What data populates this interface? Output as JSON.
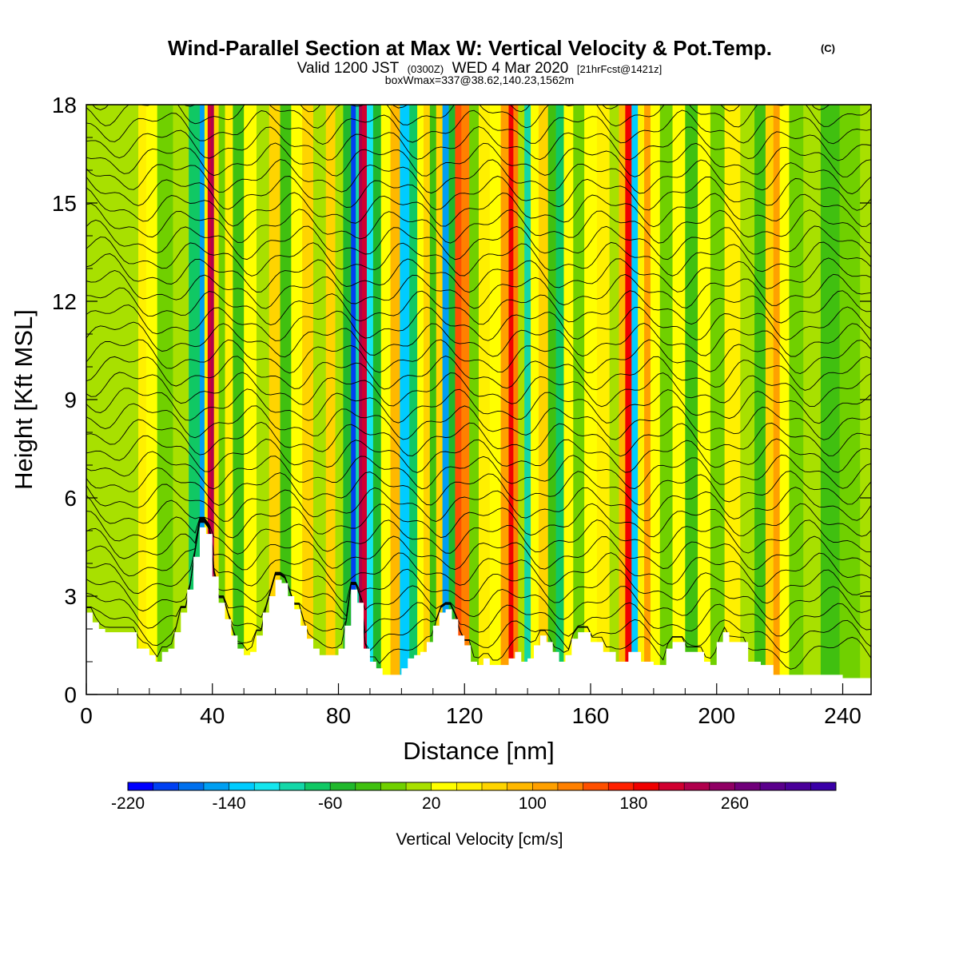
{
  "header": {
    "title": "Wind-Parallel Section at Max W: Vertical Velocity & Pot.Temp.",
    "title_mark": "(C)",
    "valid_a": "Valid 1200 JST",
    "valid_b": "(0300Z)",
    "valid_c": "WED 4 Mar 2020",
    "valid_d": "[21hrFcst@1421z]",
    "boxline": "boxWmax=337@38.62,140.23,1562m"
  },
  "chart_data": {
    "type": "heatmap",
    "xlabel": "Distance [nm]",
    "ylabel": "Height [Kft MSL]",
    "xlim": [
      0,
      249
    ],
    "ylim": [
      0,
      18
    ],
    "x_ticks": [
      0,
      40,
      80,
      120,
      160,
      200,
      240
    ],
    "x_tick_labels": [
      "0",
      "40",
      "80",
      "120",
      "160",
      "200",
      "240"
    ],
    "y_ticks": [
      0,
      3,
      6,
      9,
      12,
      15,
      18
    ],
    "y_tick_labels": [
      "0",
      "3",
      "6",
      "9",
      "12",
      "15",
      "18"
    ],
    "colorbar": {
      "title": "Vertical Velocity [cm/s]",
      "range": [
        -220,
        340
      ],
      "step": 20,
      "labeled_values": [
        -220,
        -140,
        -60,
        20,
        100,
        180,
        260
      ],
      "labels": [
        "-220",
        "-140",
        "-60",
        "20",
        "100",
        "180",
        "260"
      ],
      "colors": [
        "#0000ff",
        "#0040f2",
        "#0070ee",
        "#009ff2",
        "#00ccff",
        "#14e6ee",
        "#14d7a8",
        "#10c864",
        "#20b82c",
        "#40c010",
        "#70d000",
        "#a8e000",
        "#ffff00",
        "#fff000",
        "#ffd400",
        "#ffb800",
        "#ffa000",
        "#ff8000",
        "#ff5000",
        "#ff2000",
        "#f00000",
        "#d00030",
        "#b0004c",
        "#900064",
        "#70007a",
        "#5a008c",
        "#4a009a",
        "#3a00a8"
      ]
    },
    "terrain": {
      "x": [
        0,
        2,
        2,
        4,
        4,
        6,
        6,
        8,
        8,
        12,
        12,
        16,
        16,
        20,
        20,
        22,
        22,
        24,
        24,
        26,
        26,
        28,
        28,
        30,
        30,
        32,
        32,
        34,
        34,
        36,
        36,
        38,
        38,
        40,
        40,
        42,
        42,
        44,
        44,
        46,
        46,
        48,
        48,
        50,
        50,
        52,
        52,
        54,
        54,
        56,
        56,
        58,
        58,
        60,
        60,
        62,
        62,
        64,
        64,
        66,
        66,
        68,
        68,
        70,
        70,
        72,
        72,
        74,
        74,
        76,
        76,
        78,
        78,
        80,
        80,
        82,
        82,
        84,
        84,
        86,
        86,
        88,
        88,
        90,
        90,
        92,
        92,
        94,
        94,
        98,
        98,
        100,
        100,
        102,
        102,
        104,
        104,
        106,
        106,
        108,
        108,
        110,
        110,
        112,
        112,
        114,
        114,
        116,
        116,
        118,
        118,
        120,
        120,
        122,
        122,
        124,
        124,
        126,
        126,
        128,
        128,
        130,
        130,
        134,
        134,
        136,
        136,
        138,
        138,
        140,
        140,
        142,
        142,
        144,
        144,
        146,
        146,
        148,
        148,
        150,
        150,
        152,
        152,
        154,
        154,
        156,
        156,
        160,
        160,
        164,
        164,
        168,
        168,
        170,
        170,
        172,
        172,
        176,
        176,
        180,
        180,
        184,
        184,
        186,
        186,
        190,
        190,
        194,
        194,
        196,
        196,
        198,
        198,
        200,
        200,
        202,
        202,
        204,
        204,
        210,
        210,
        214,
        214,
        218,
        218,
        240,
        240,
        249
      ],
      "y": [
        2.5,
        2.5,
        2.2,
        2.2,
        2.0,
        2.0,
        1.9,
        1.9,
        1.9,
        1.9,
        1.9,
        1.9,
        1.4,
        1.4,
        1.2,
        1.2,
        1.0,
        1.0,
        1.3,
        1.3,
        1.4,
        1.4,
        1.9,
        1.9,
        2.5,
        2.5,
        3.2,
        3.2,
        4.2,
        4.2,
        5.1,
        5.1,
        4.9,
        4.9,
        3.6,
        3.6,
        2.8,
        2.8,
        2.3,
        2.3,
        1.8,
        1.8,
        1.4,
        1.4,
        1.2,
        1.2,
        1.3,
        1.3,
        1.8,
        1.8,
        2.5,
        2.5,
        3.0,
        3.0,
        3.5,
        3.5,
        3.4,
        3.4,
        3.0,
        3.0,
        2.6,
        2.6,
        2.1,
        2.1,
        1.7,
        1.7,
        1.4,
        1.4,
        1.2,
        1.2,
        1.2,
        1.2,
        1.2,
        1.2,
        1.4,
        1.4,
        2.1,
        2.1,
        3.2,
        3.2,
        2.8,
        2.8,
        1.4,
        1.4,
        1.0,
        1.0,
        0.8,
        0.8,
        0.6,
        0.6,
        0.6,
        0.6,
        0.8,
        0.8,
        1.1,
        1.1,
        1.2,
        1.2,
        1.3,
        1.3,
        1.6,
        1.6,
        2.1,
        2.1,
        2.5,
        2.5,
        2.6,
        2.6,
        2.3,
        2.3,
        1.8,
        1.8,
        1.5,
        1.5,
        1.0,
        1.0,
        0.9,
        0.9,
        1.1,
        1.1,
        0.9,
        0.9,
        0.9,
        0.9,
        1.1,
        1.1,
        1.3,
        1.3,
        1.0,
        1.0,
        1.1,
        1.1,
        1.5,
        1.5,
        1.8,
        1.8,
        1.6,
        1.6,
        1.3,
        1.3,
        1.0,
        1.0,
        1.2,
        1.2,
        1.7,
        1.7,
        1.9,
        1.9,
        1.6,
        1.6,
        1.3,
        1.3,
        1.0,
        1.0,
        1.0,
        1.0,
        1.3,
        1.3,
        1.0,
        1.0,
        0.9,
        0.9,
        1.4,
        1.4,
        1.6,
        1.6,
        1.3,
        1.3,
        1.3,
        1.3,
        1.0,
        1.0,
        0.9,
        0.9,
        1.6,
        1.6,
        1.9,
        1.9,
        1.6,
        1.6,
        1.0,
        1.0,
        0.9,
        0.9,
        0.6,
        0.6,
        0.5,
        0.5,
        0.3,
        0.3,
        0.3,
        0.3,
        0.3,
        0.3
      ]
    },
    "columns": [
      {
        "x": 0,
        "w": 0
      },
      {
        "x": 8,
        "w": 0
      },
      {
        "x": 15,
        "w": 10
      },
      {
        "x": 18,
        "w": 45
      },
      {
        "x": 20,
        "w": 25
      },
      {
        "x": 25,
        "w": -20
      },
      {
        "x": 30,
        "w": 0
      },
      {
        "x": 35,
        "w": -80
      },
      {
        "x": 37,
        "w": -160
      },
      {
        "x": 38,
        "w": 40
      },
      {
        "x": 39,
        "w": 200
      },
      {
        "x": 40,
        "w": 220
      },
      {
        "x": 41,
        "w": 60
      },
      {
        "x": 43,
        "w": -20
      },
      {
        "x": 45,
        "w": 50
      },
      {
        "x": 48,
        "w": -40
      },
      {
        "x": 52,
        "w": 30
      },
      {
        "x": 56,
        "w": 10
      },
      {
        "x": 60,
        "w": 60
      },
      {
        "x": 63,
        "w": -30
      },
      {
        "x": 67,
        "w": 20
      },
      {
        "x": 70,
        "w": 70
      },
      {
        "x": 74,
        "w": 10
      },
      {
        "x": 78,
        "w": 60
      },
      {
        "x": 80,
        "w": 10
      },
      {
        "x": 83,
        "w": -60
      },
      {
        "x": 85,
        "w": -190
      },
      {
        "x": 86,
        "w": -100
      },
      {
        "x": 87,
        "w": 230
      },
      {
        "x": 88,
        "w": 200
      },
      {
        "x": 90,
        "w": -120
      },
      {
        "x": 92,
        "w": -60
      },
      {
        "x": 95,
        "w": 30
      },
      {
        "x": 98,
        "w": 80
      },
      {
        "x": 101,
        "w": -130
      },
      {
        "x": 104,
        "w": -80
      },
      {
        "x": 106,
        "w": 20
      },
      {
        "x": 108,
        "w": 70
      },
      {
        "x": 110,
        "w": -30
      },
      {
        "x": 112,
        "w": 60
      },
      {
        "x": 114,
        "w": -160
      },
      {
        "x": 116,
        "w": -60
      },
      {
        "x": 118,
        "w": 150
      },
      {
        "x": 120,
        "w": 120
      },
      {
        "x": 123,
        "w": -20
      },
      {
        "x": 126,
        "w": 40
      },
      {
        "x": 130,
        "w": 20
      },
      {
        "x": 133,
        "w": 100
      },
      {
        "x": 135,
        "w": 190
      },
      {
        "x": 136,
        "w": 130
      },
      {
        "x": 138,
        "w": 0
      },
      {
        "x": 140,
        "w": -100
      },
      {
        "x": 142,
        "w": 20
      },
      {
        "x": 145,
        "w": 60
      },
      {
        "x": 148,
        "w": -40
      },
      {
        "x": 150,
        "w": -70
      },
      {
        "x": 153,
        "w": 30
      },
      {
        "x": 156,
        "w": -20
      },
      {
        "x": 160,
        "w": 20
      },
      {
        "x": 164,
        "w": 50
      },
      {
        "x": 168,
        "w": 10
      },
      {
        "x": 170,
        "w": 80
      },
      {
        "x": 172,
        "w": 190
      },
      {
        "x": 174,
        "w": -130
      },
      {
        "x": 176,
        "w": 40
      },
      {
        "x": 178,
        "w": 110
      },
      {
        "x": 180,
        "w": 20
      },
      {
        "x": 184,
        "w": -20
      },
      {
        "x": 188,
        "w": 30
      },
      {
        "x": 192,
        "w": -30
      },
      {
        "x": 196,
        "w": 30
      },
      {
        "x": 200,
        "w": -10
      },
      {
        "x": 205,
        "w": 40
      },
      {
        "x": 210,
        "w": 0
      },
      {
        "x": 214,
        "w": -30
      },
      {
        "x": 217,
        "w": 60
      },
      {
        "x": 219,
        "w": 110
      },
      {
        "x": 221,
        "w": 20
      },
      {
        "x": 225,
        "w": -20
      },
      {
        "x": 230,
        "w": 10
      },
      {
        "x": 236,
        "w": -30
      },
      {
        "x": 242,
        "w": -10
      },
      {
        "x": 249,
        "w": 10
      }
    ]
  }
}
